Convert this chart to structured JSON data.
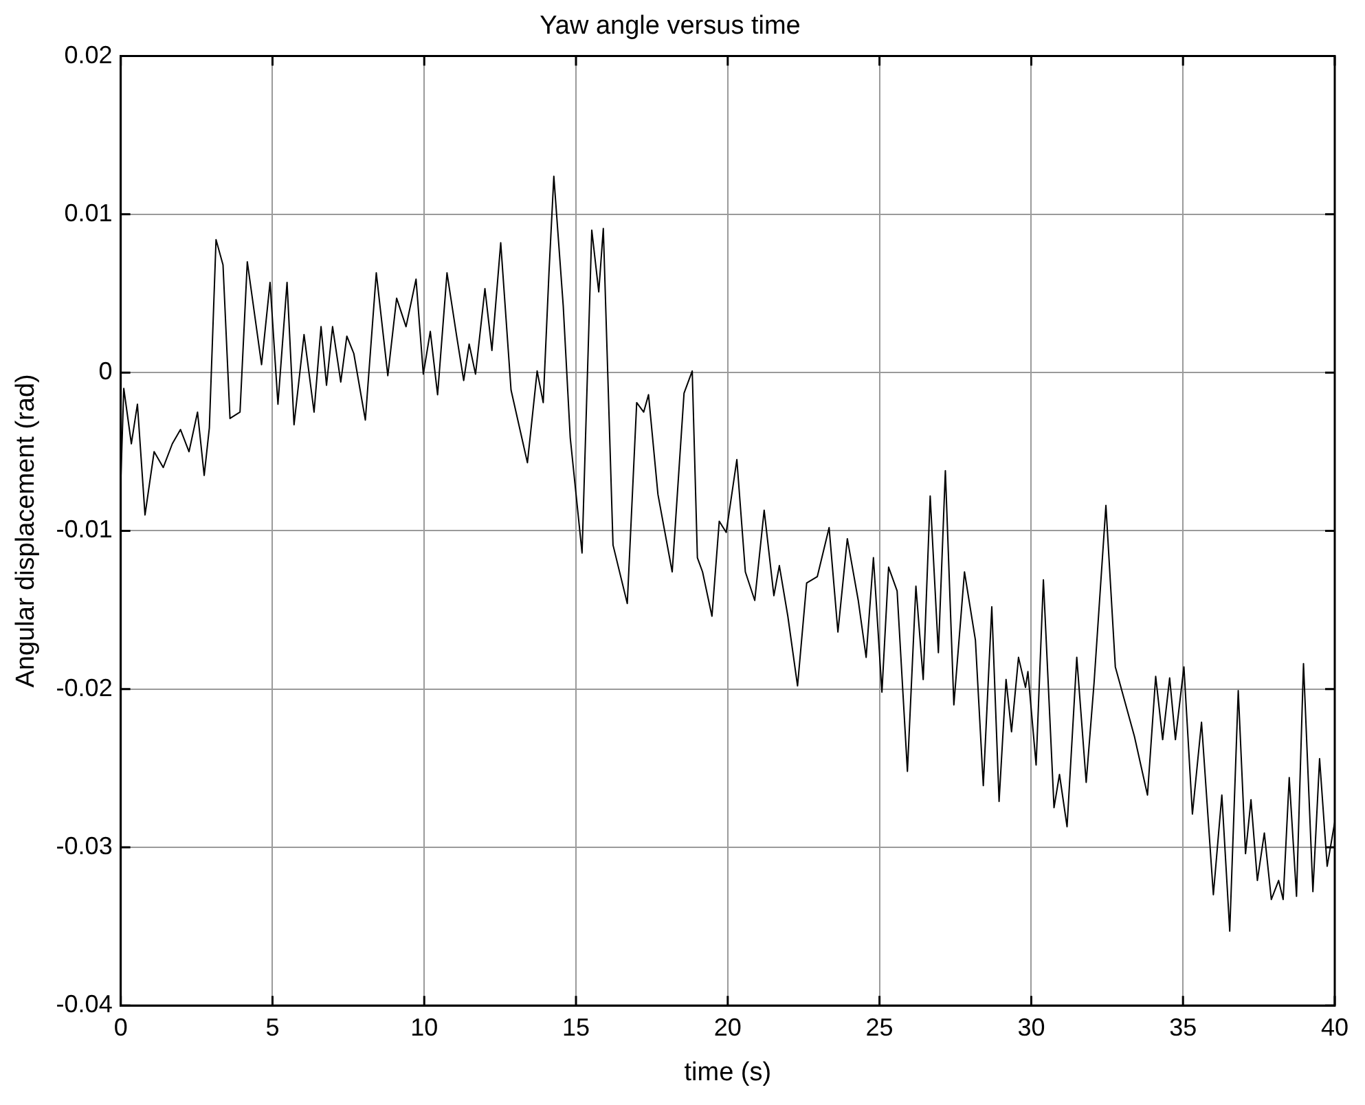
{
  "chart_data": {
    "type": "line",
    "title": "Yaw angle versus time",
    "xlabel": "time (s)",
    "ylabel": "Angular displacement (rad)",
    "xlim": [
      0,
      40
    ],
    "xticks": [
      0,
      5,
      10,
      15,
      20,
      25,
      30,
      35,
      40
    ],
    "ylim": [
      -0.04,
      0.02
    ],
    "yticks": [
      -0.04,
      -0.03,
      -0.02,
      -0.01,
      0,
      0.01,
      0.02
    ],
    "grid": true,
    "legend": false,
    "marker": "none",
    "line_style": "solid",
    "series": [
      {
        "color": "#000000",
        "x": [
          0,
          0.1,
          0.35,
          0.55,
          0.8,
          1.1,
          1.4,
          1.7,
          1.97,
          2.25,
          2.53,
          2.75,
          2.92,
          3.14,
          3.37,
          3.6,
          3.93,
          4.17,
          4.64,
          4.92,
          5.18,
          5.48,
          5.71,
          6.04,
          6.37,
          6.6,
          6.78,
          6.98,
          7.25,
          7.45,
          7.68,
          8.06,
          8.42,
          8.8,
          9.09,
          9.4,
          9.73,
          9.97,
          10.2,
          10.44,
          10.75,
          11.06,
          11.3,
          11.48,
          11.69,
          12.0,
          12.23,
          12.52,
          12.86,
          13.4,
          13.72,
          13.92,
          14.11,
          14.27,
          14.58,
          14.81,
          15.2,
          15.52,
          15.75,
          15.9,
          16.22,
          16.69,
          17.0,
          17.23,
          17.39,
          17.7,
          18.17,
          18.56,
          18.83,
          19.0,
          19.17,
          19.48,
          19.72,
          19.95,
          20.3,
          20.58,
          20.89,
          21.2,
          21.52,
          21.7,
          21.98,
          22.3,
          22.6,
          22.95,
          23.34,
          23.63,
          23.94,
          24.3,
          24.56,
          24.8,
          25.08,
          25.3,
          25.58,
          25.92,
          26.2,
          26.44,
          26.67,
          26.94,
          27.17,
          27.45,
          27.8,
          28.16,
          28.42,
          28.7,
          28.94,
          29.17,
          29.35,
          29.58,
          29.81,
          29.89,
          30.16,
          30.4,
          30.75,
          30.93,
          31.18,
          31.5,
          31.81,
          32.07,
          32.46,
          32.77,
          33.4,
          33.83,
          34.1,
          34.33,
          34.56,
          34.75,
          35.03,
          35.31,
          35.61,
          36.0,
          36.28,
          36.54,
          36.82,
          37.06,
          37.24,
          37.45,
          37.68,
          37.91,
          38.15,
          38.3,
          38.5,
          38.74,
          38.97,
          39.28,
          39.5,
          39.75,
          40.0
        ],
        "values": [
          -0.007,
          -0.001,
          -0.0045,
          -0.002,
          -0.009,
          -0.005,
          -0.006,
          -0.0045,
          -0.0036,
          -0.005,
          -0.0025,
          -0.0065,
          -0.0035,
          0.0084,
          0.0068,
          -0.0029,
          -0.0025,
          0.007,
          0.0005,
          0.0057,
          -0.002,
          0.0057,
          -0.0033,
          0.0024,
          -0.0025,
          0.0029,
          -0.0008,
          0.0029,
          -0.0006,
          0.0023,
          0.0012,
          -0.003,
          0.0063,
          -0.0002,
          0.0047,
          0.0029,
          0.0059,
          -0.0001,
          0.0026,
          -0.0014,
          0.0063,
          0.0024,
          -0.0005,
          0.0018,
          -0.0001,
          0.0053,
          0.0014,
          0.0082,
          -0.0011,
          -0.0057,
          0.0001,
          -0.0019,
          0.0063,
          0.0124,
          0.0042,
          -0.0041,
          -0.0114,
          0.009,
          0.0051,
          0.0091,
          -0.0109,
          -0.0146,
          -0.0019,
          -0.0025,
          -0.0014,
          -0.0077,
          -0.0126,
          -0.0013,
          0.0001,
          -0.0117,
          -0.0126,
          -0.0154,
          -0.0094,
          -0.0101,
          -0.0055,
          -0.0126,
          -0.0144,
          -0.0087,
          -0.0141,
          -0.0122,
          -0.0154,
          -0.0198,
          -0.0133,
          -0.0129,
          -0.0098,
          -0.0164,
          -0.0105,
          -0.0144,
          -0.018,
          -0.0117,
          -0.0202,
          -0.0123,
          -0.0138,
          -0.0252,
          -0.0135,
          -0.0194,
          -0.0078,
          -0.0177,
          -0.0062,
          -0.021,
          -0.0126,
          -0.0169,
          -0.0261,
          -0.0148,
          -0.0271,
          -0.0194,
          -0.0227,
          -0.018,
          -0.0199,
          -0.0189,
          -0.0248,
          -0.0131,
          -0.0275,
          -0.0254,
          -0.0287,
          -0.018,
          -0.0259,
          -0.0196,
          -0.0084,
          -0.0186,
          -0.023,
          -0.0267,
          -0.0192,
          -0.0232,
          -0.0193,
          -0.0232,
          -0.0186,
          -0.0279,
          -0.0221,
          -0.033,
          -0.0267,
          -0.0353,
          -0.0201,
          -0.0304,
          -0.027,
          -0.0321,
          -0.0291,
          -0.0333,
          -0.0321,
          -0.0333,
          -0.0256,
          -0.0331,
          -0.0184,
          -0.0328,
          -0.0244,
          -0.0312,
          -0.0284
        ]
      }
    ]
  }
}
